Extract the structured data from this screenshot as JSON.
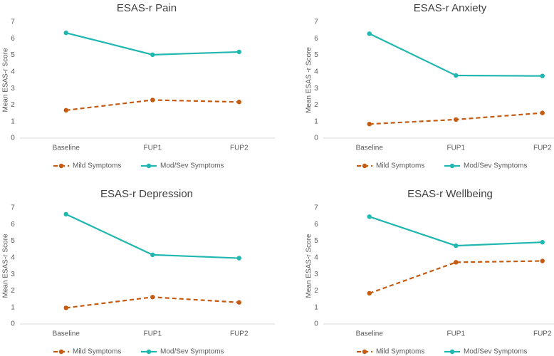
{
  "chart_data": [
    {
      "type": "line",
      "title": "ESAS-r Pain",
      "y_label": "Mean ESAS-r Score",
      "categories": [
        "Baseline",
        "FUP1",
        "FUP2"
      ],
      "series": [
        {
          "name": "Mild Symptoms",
          "color": "#c55a11",
          "line_style": "dashed",
          "values": [
            1.68,
            2.3,
            2.18
          ]
        },
        {
          "name": "Mod/Sev Symptoms",
          "color": "#1fb7b0",
          "line_style": "solid",
          "values": [
            6.35,
            5.03,
            5.2
          ]
        }
      ],
      "ylim": [
        0,
        7
      ],
      "yticks": [
        0,
        1,
        2,
        3,
        4,
        5,
        6,
        7
      ],
      "grid": false,
      "legend": "bottom"
    },
    {
      "type": "line",
      "title": "ESAS-r Anxiety",
      "y_label": "Mean ESAS -r Score",
      "categories": [
        "Baseline",
        "FUP1",
        "FUP2"
      ],
      "series": [
        {
          "name": "Mild Symptoms",
          "color": "#c55a11",
          "line_style": "dashed",
          "values": [
            0.85,
            1.12,
            1.52
          ]
        },
        {
          "name": "Mod/Sev Symptoms",
          "color": "#1fb7b0",
          "line_style": "solid",
          "values": [
            6.3,
            3.78,
            3.75
          ]
        }
      ],
      "ylim": [
        0,
        7
      ],
      "yticks": [
        0,
        1,
        2,
        3,
        4,
        5,
        6,
        7
      ],
      "grid": false,
      "legend": "bottom"
    },
    {
      "type": "line",
      "title": "ESAS-r Depression",
      "y_label": "Mean ESAS-r Score",
      "categories": [
        "Baseline",
        "FUP1",
        "FUP2"
      ],
      "series": [
        {
          "name": "Mild Symptoms",
          "color": "#c55a11",
          "line_style": "dashed",
          "values": [
            0.97,
            1.62,
            1.3
          ]
        },
        {
          "name": "Mod/Sev Symptoms",
          "color": "#1fb7b0",
          "line_style": "solid",
          "values": [
            6.62,
            4.17,
            3.97
          ]
        }
      ],
      "ylim": [
        0,
        7
      ],
      "yticks": [
        0,
        1,
        2,
        3,
        4,
        5,
        6,
        7
      ],
      "grid": false,
      "legend": "bottom"
    },
    {
      "type": "line",
      "title": "ESAS-r Wellbeing",
      "y_label": "Mean ESAS-r Score",
      "categories": [
        "Baseline",
        "FUP1",
        "FUP2"
      ],
      "series": [
        {
          "name": "Mild Symptoms",
          "color": "#c55a11",
          "line_style": "dashed",
          "values": [
            1.85,
            3.72,
            3.8
          ]
        },
        {
          "name": "Mod/Sev Symptoms",
          "color": "#1fb7b0",
          "line_style": "solid",
          "values": [
            6.47,
            4.72,
            4.93
          ]
        }
      ],
      "ylim": [
        0,
        7
      ],
      "yticks": [
        0,
        1,
        2,
        3,
        4,
        5,
        6,
        7
      ],
      "grid": false,
      "legend": "bottom"
    }
  ]
}
